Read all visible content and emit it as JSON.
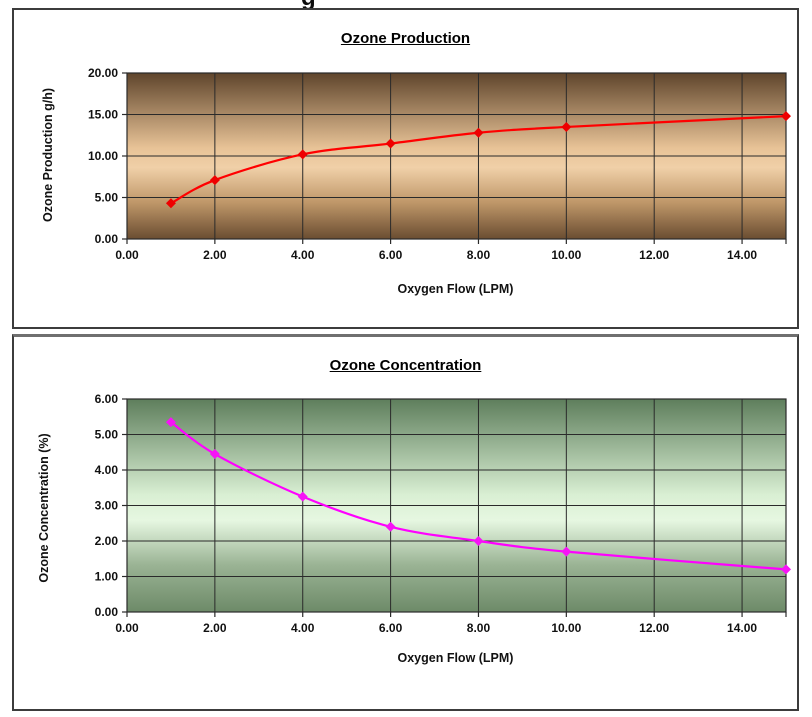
{
  "page": {
    "background": "#ffffff",
    "clipped_heading_fragment": "g"
  },
  "chart_data": [
    {
      "type": "line",
      "title": "Ozone Production",
      "xlabel": "Oxygen Flow (LPM)",
      "ylabel": "Ozone Production g/h)",
      "x": [
        1,
        2,
        4,
        6,
        8,
        10,
        15
      ],
      "values": [
        4.3,
        7.1,
        10.2,
        11.5,
        12.8,
        13.5,
        14.8
      ],
      "xlim": [
        0,
        15
      ],
      "ylim": [
        0,
        20
      ],
      "xticks": [
        0,
        2,
        4,
        6,
        8,
        10,
        12,
        14
      ],
      "yticks": [
        0,
        5,
        10,
        15,
        20
      ],
      "tick_decimals": 2,
      "grid": true,
      "legend": "none",
      "line_color": "#ff0000",
      "marker": "diamond",
      "marker_color": "#ee0000",
      "plot_bg_gradient": [
        "#5f452c",
        "#e7c296",
        "#f0d0a8",
        "#bf9769",
        "#6a4d31"
      ]
    },
    {
      "type": "line",
      "title": "Ozone Concentration",
      "xlabel": "Oxygen Flow (LPM)",
      "ylabel": "Ozone Concentration (%)",
      "x": [
        1,
        2,
        4,
        6,
        8,
        10,
        15
      ],
      "values": [
        5.35,
        4.45,
        3.25,
        2.4,
        2.0,
        1.7,
        1.2
      ],
      "xlim": [
        0,
        15
      ],
      "ylim": [
        0,
        6
      ],
      "xticks": [
        0,
        2,
        4,
        6,
        8,
        10,
        12,
        14
      ],
      "yticks": [
        0,
        1,
        2,
        3,
        4,
        5,
        6
      ],
      "tick_decimals": 2,
      "grid": true,
      "legend": "none",
      "line_color": "#ff00ff",
      "marker": "diamond",
      "marker_color": "#f613f6",
      "plot_bg_gradient": [
        "#5e7e5c",
        "#d9efd3",
        "#e6f7e1",
        "#9ab394",
        "#6d8a68"
      ]
    }
  ]
}
